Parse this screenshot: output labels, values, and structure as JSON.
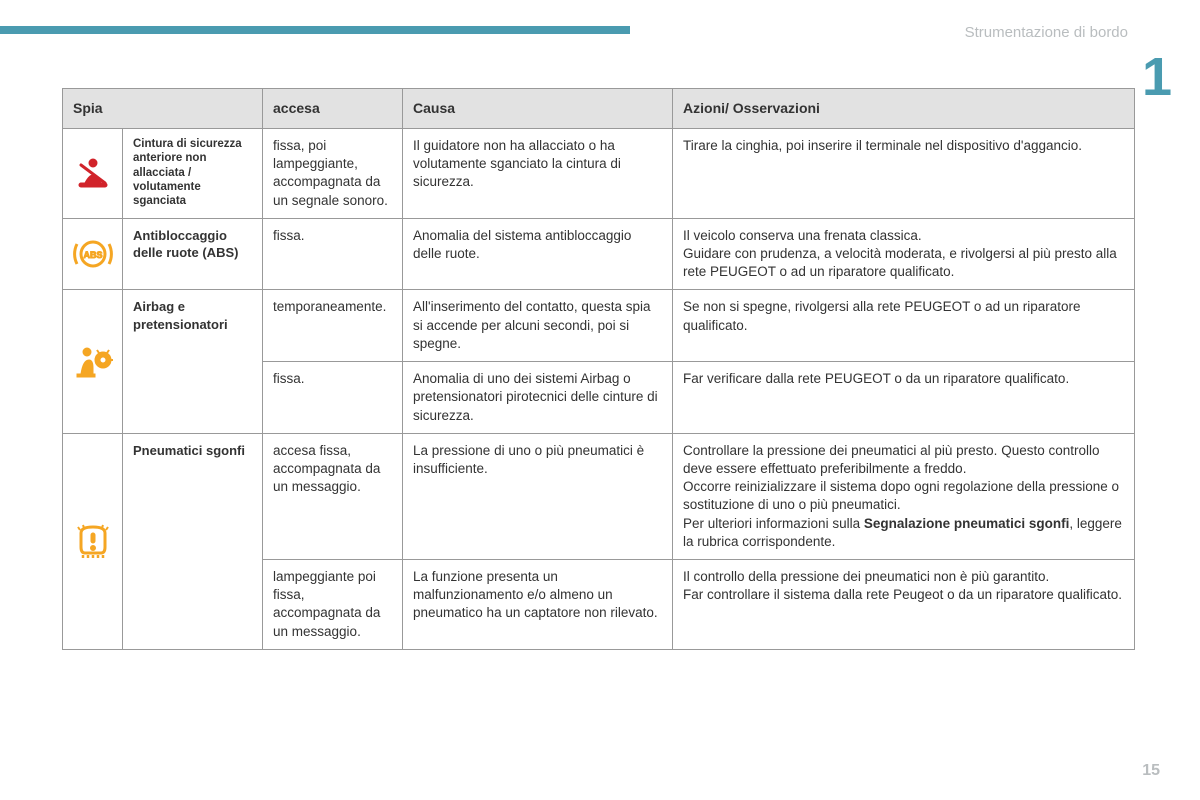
{
  "colors": {
    "accent": "#4a9bb0",
    "muted": "#b9bdbf",
    "border": "#999999",
    "header_bg": "#e2e2e2",
    "text": "#333333",
    "red": "#d1232a",
    "orange": "#f5a623"
  },
  "header": {
    "section_title": "Strumentazione di bordo",
    "chapter_number": "1",
    "page_number": "15"
  },
  "table": {
    "columns": [
      "Spia",
      "accesa",
      "Causa",
      "Azioni/ Osservazioni"
    ],
    "rows": [
      {
        "icon": "seatbelt",
        "icon_color": "#d1232a",
        "name_html": "Cintura di sicurezza anteriore non allacciata / volutamente sganciata",
        "name_small": true,
        "accesa": "fissa, poi lampeggiante, accompagnata da un segnale sonoro.",
        "causa": "Il guidatore non ha allacciato o ha volutamente sganciato la cintura di sicurezza.",
        "azioni": "Tirare la cinghia, poi inserire il terminale nel dispositivo d'aggancio."
      },
      {
        "icon": "abs",
        "icon_color": "#f5a623",
        "name_html": "Antibloccaggio delle ruote (ABS)",
        "accesa": "fissa.",
        "causa": "Anomalia del sistema antibloccaggio delle ruote.",
        "azioni": "Il veicolo conserva una frenata classica.\nGuidare con prudenza, a velocità moderata, e rivolgersi al più presto alla rete PEUGEOT o ad un riparatore qualificato."
      },
      {
        "icon": "airbag",
        "icon_color": "#f5a623",
        "name_html": "Airbag e pretensionatori",
        "icon_rowspan": 2,
        "name_rowspan": 2,
        "accesa": "temporaneamente.",
        "causa": "All'inserimento del contatto, questa spia si accende per alcuni secondi, poi si spegne.",
        "azioni": "Se non si spegne, rivolgersi alla rete PEUGEOT o ad un riparatore qualificato."
      },
      {
        "continuation": true,
        "accesa": "fissa.",
        "causa": "Anomalia di uno dei sistemi Airbag o pretensionatori pirotecnici delle cinture di sicurezza.",
        "azioni": "Far verificare dalla rete PEUGEOT o da un riparatore qualificato."
      },
      {
        "icon": "tpms",
        "icon_color": "#f5a623",
        "name_html": "Pneumatici sgonfi",
        "icon_rowspan": 2,
        "name_rowspan": 2,
        "accesa": "accesa fissa, accompagnata da un messaggio.",
        "causa": "La pressione di uno o più pneumatici è insufficiente.",
        "azioni_html": "Controllare la pressione dei pneumatici al più presto. Questo controllo deve essere effettuato preferibilmente a freddo.<br>Occorre reinizializzare il sistema dopo ogni regolazione della pressione o sostituzione di uno o più pneumatici.<br>Per ulteriori informazioni sulla <span class='b'>Segnalazione pneumatici sgonfi</span>, leggere la rubrica corrispondente."
      },
      {
        "continuation": true,
        "accesa": "lampeggiante poi fissa, accompagnata da un messaggio.",
        "causa": "La funzione presenta un malfunzionamento e/o almeno un pneumatico ha un captatore non rilevato.",
        "azioni": "Il controllo della pressione dei pneumatici non è più garantito.\nFar controllare il sistema dalla rete Peugeot o da un riparatore qualificato."
      }
    ]
  }
}
